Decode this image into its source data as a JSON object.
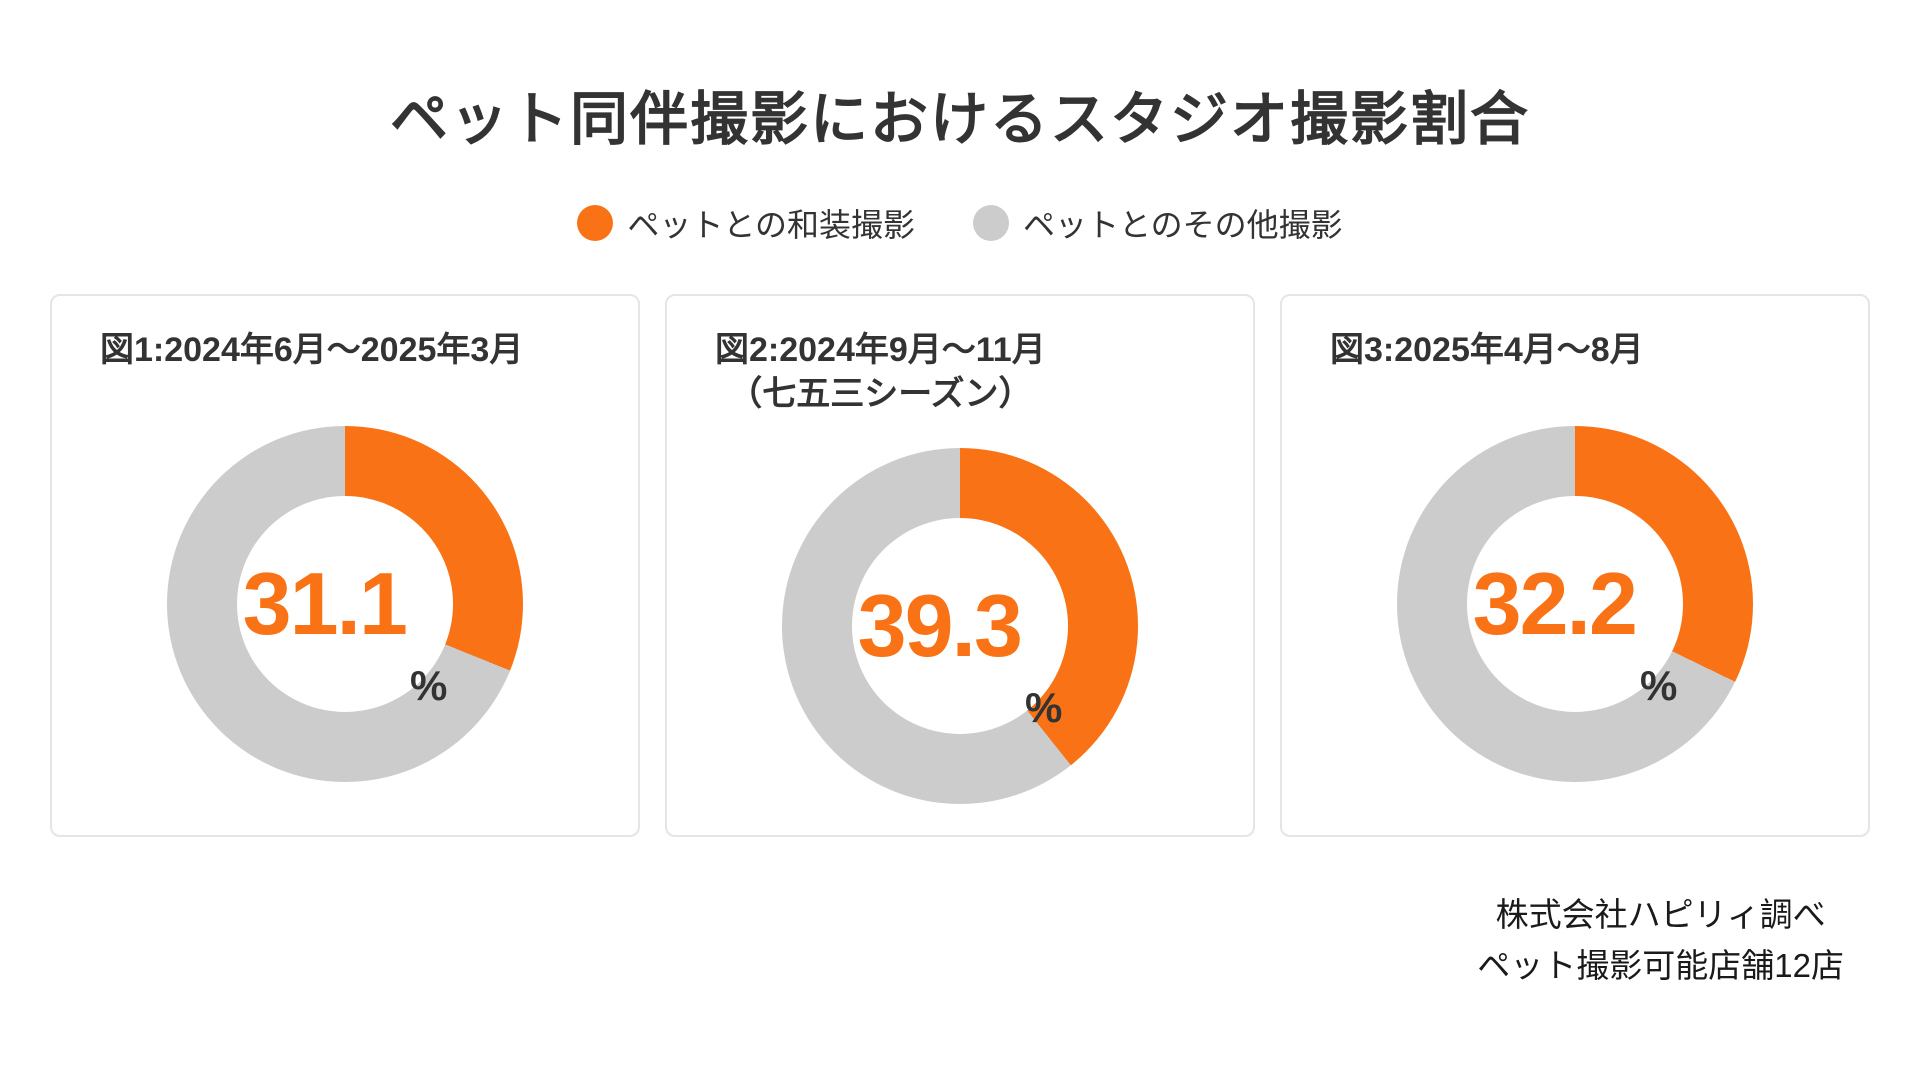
{
  "title": "ペット同伴撮影におけるスタジオ撮影割合",
  "legend": [
    {
      "label": "ペットとの和装撮影",
      "color": "#F97316"
    },
    {
      "label": "ペットとのその他撮影",
      "color": "#CCCCCC"
    }
  ],
  "colors": {
    "accent_orange": "#F97316",
    "ring_gray": "#CCCCCC",
    "text_dark": "#333333",
    "card_border": "#E5E5E5"
  },
  "chart_data": [
    {
      "type": "pie",
      "title": "図1:2024年6月〜2025年3月",
      "title_line1": "図1:2024年6月〜2025年3月",
      "title_line2": "",
      "labels": [
        "ペットとの和装撮影",
        "ペットとのその他撮影"
      ],
      "values": [
        31.1,
        68.9
      ],
      "center_value": "31.1",
      "unit": "%",
      "donut": true,
      "start_angle_deg": 0,
      "direction": "clockwise"
    },
    {
      "type": "pie",
      "title": "図2:2024年9月〜11月（七五三シーズン）",
      "title_line1": "図2:2024年9月〜11月",
      "title_line2": "（七五三シーズン）",
      "labels": [
        "ペットとの和装撮影",
        "ペットとのその他撮影"
      ],
      "values": [
        39.3,
        60.7
      ],
      "center_value": "39.3",
      "unit": "%",
      "donut": true,
      "start_angle_deg": 0,
      "direction": "clockwise"
    },
    {
      "type": "pie",
      "title": "図3:2025年4月〜8月",
      "title_line1": "図3:2025年4月〜8月",
      "title_line2": "",
      "labels": [
        "ペットとの和装撮影",
        "ペットとのその他撮影"
      ],
      "values": [
        32.2,
        67.8
      ],
      "center_value": "32.2",
      "unit": "%",
      "donut": true,
      "start_angle_deg": 0,
      "direction": "clockwise"
    }
  ],
  "source": {
    "line1": "株式会社ハピリィ調べ",
    "line2": "ペット撮影可能店舗12店"
  }
}
